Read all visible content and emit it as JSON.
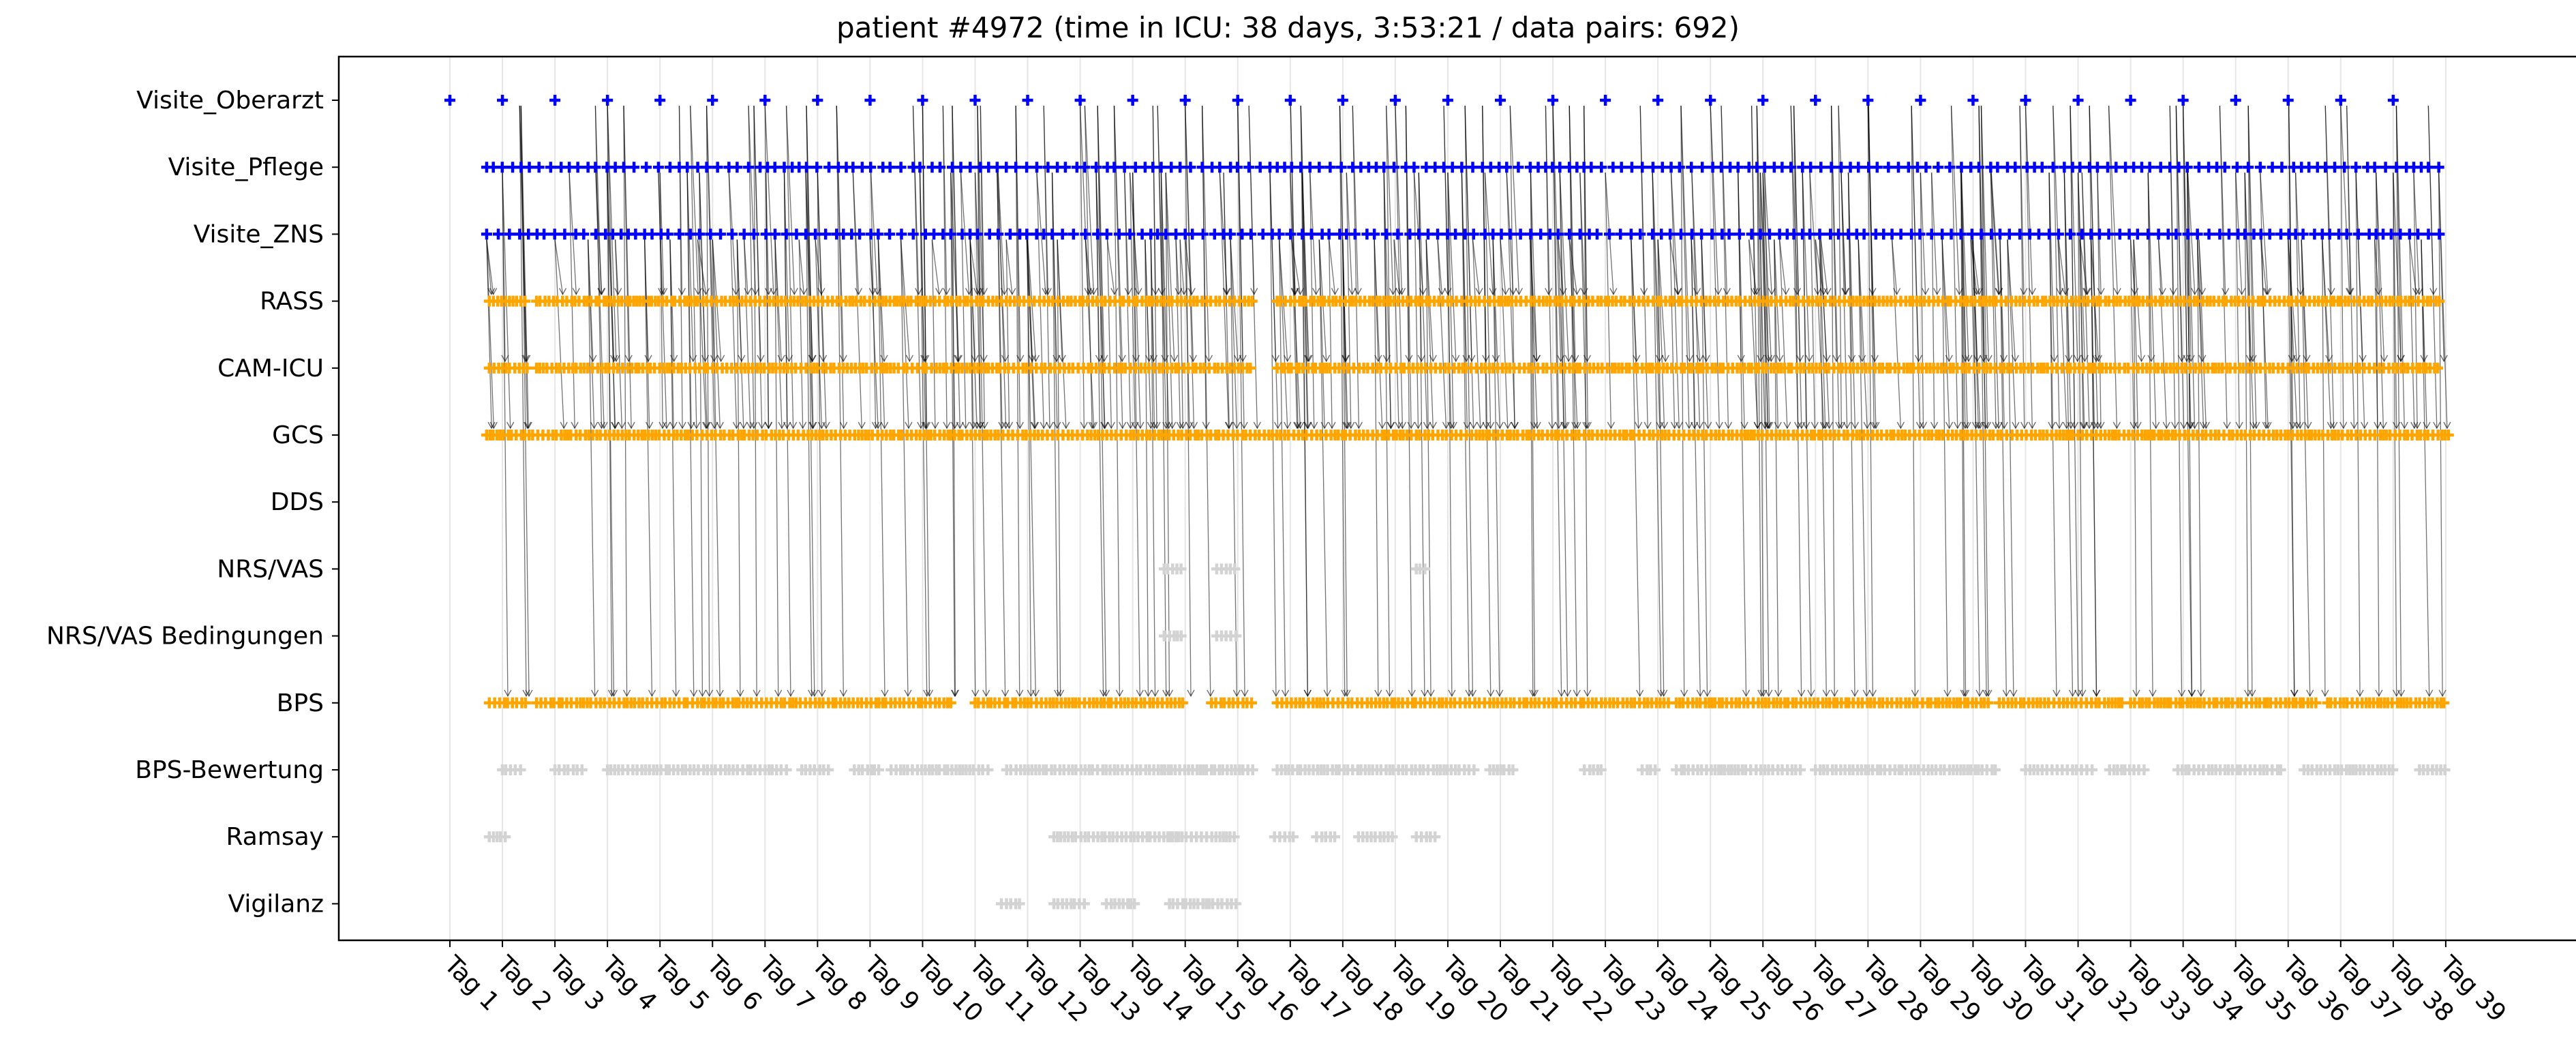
{
  "chart_data": {
    "type": "scatter",
    "title": "patient #4972 (time in ICU: 38 days, 3:53:21 / data pairs: 692)",
    "rows": [
      "Visite_Oberarzt",
      "Visite_Pflege",
      "Visite_ZNS",
      "RASS",
      "CAM-ICU",
      "GCS",
      "DDS",
      "NRS/VAS",
      "NRS/VAS Bedingungen",
      "BPS",
      "BPS-Bewertung",
      "Ramsay",
      "Vigilanz"
    ],
    "x_tick_labels": [
      "Tag 1",
      "Tag 2",
      "Tag 3",
      "Tag 4",
      "Tag 5",
      "Tag 6",
      "Tag 7",
      "Tag 8",
      "Tag 9",
      "Tag 10",
      "Tag 11",
      "Tag 12",
      "Tag 13",
      "Tag 14",
      "Tag 15",
      "Tag 16",
      "Tag 17",
      "Tag 18",
      "Tag 19",
      "Tag 20",
      "Tag 21",
      "Tag 22",
      "Tag 23",
      "Tag 24",
      "Tag 25",
      "Tag 26",
      "Tag 27",
      "Tag 28",
      "Tag 29",
      "Tag 30",
      "Tag 31",
      "Tag 32",
      "Tag 33",
      "Tag 34",
      "Tag 35",
      "Tag 36",
      "Tag 37",
      "Tag 38",
      "Tag 39"
    ],
    "x_range_days": [
      -2.1,
      38.8
    ],
    "marker": "plus",
    "grid": "vertical lines at each day",
    "legend": "none",
    "colors": {
      "visits": "#0000ff",
      "paired": "#ffa500",
      "unpaired": "#d3d3d3",
      "link": "#000000",
      "grid": "#e6e6e6"
    },
    "series": [
      {
        "row": "Visite_Oberarzt",
        "color": "#0000ff",
        "segments": [
          [
            0,
            0
          ],
          [
            1,
            1
          ],
          [
            2,
            2
          ],
          [
            3,
            3
          ],
          [
            4,
            4
          ],
          [
            5,
            5
          ],
          [
            6,
            6
          ],
          [
            7,
            7
          ],
          [
            8,
            8
          ],
          [
            9,
            9
          ],
          [
            10,
            10
          ],
          [
            11,
            11
          ],
          [
            12,
            12
          ],
          [
            13,
            13
          ],
          [
            14,
            14
          ],
          [
            15,
            15
          ],
          [
            16,
            16
          ],
          [
            17,
            17
          ],
          [
            18,
            18
          ],
          [
            19,
            19
          ],
          [
            20,
            20
          ],
          [
            21,
            21
          ],
          [
            22,
            22
          ],
          [
            23,
            23
          ],
          [
            24,
            24
          ],
          [
            25,
            25
          ],
          [
            26,
            26
          ],
          [
            27,
            27
          ],
          [
            28,
            28
          ],
          [
            29,
            29
          ],
          [
            30,
            30
          ],
          [
            31,
            31
          ],
          [
            32,
            32
          ],
          [
            33,
            33
          ],
          [
            34,
            34
          ],
          [
            35,
            35
          ],
          [
            36,
            36
          ],
          [
            37,
            37
          ]
        ]
      },
      {
        "row": "Visite_Pflege",
        "color": "#0000ff",
        "segments": [
          [
            0.7,
            38
          ]
        ]
      },
      {
        "row": "Visite_ZNS",
        "color": "#0000ff",
        "segments": [
          [
            0.7,
            37.9
          ]
        ]
      },
      {
        "row": "RASS",
        "color": "#ffa500",
        "segments": [
          [
            0.75,
            1.5
          ],
          [
            1.65,
            15.3
          ],
          [
            15.75,
            37.9
          ]
        ]
      },
      {
        "row": "CAM-ICU",
        "color": "#ffa500",
        "segments": [
          [
            0.75,
            1.5
          ],
          [
            1.65,
            15.3
          ],
          [
            15.75,
            37.9
          ]
        ]
      },
      {
        "row": "GCS",
        "color": "#ffa500",
        "segments": [
          [
            0.7,
            38.1
          ]
        ]
      },
      {
        "row": "DDS",
        "color": "#ffa500",
        "segments": []
      },
      {
        "row": "NRS/VAS",
        "color": "#d3d3d3",
        "segments": [
          [
            13.6,
            14
          ],
          [
            14.6,
            15
          ],
          [
            18.4,
            18.6
          ]
        ]
      },
      {
        "row": "NRS/VAS Bedingungen",
        "color": "#d3d3d3",
        "segments": [
          [
            13.6,
            14
          ],
          [
            14.6,
            15
          ]
        ]
      },
      {
        "row": "BPS",
        "color": "#ffa500",
        "segments": [
          [
            0.75,
            1.5
          ],
          [
            1.65,
            9.6
          ],
          [
            10,
            14
          ],
          [
            14.5,
            15.3
          ],
          [
            15.75,
            23.2
          ],
          [
            23.35,
            29.3
          ],
          [
            29.5,
            31.9
          ],
          [
            32,
            35.6
          ],
          [
            35.75,
            38
          ]
        ]
      },
      {
        "row": "BPS-Bewertung",
        "color": "#d3d3d3",
        "segments": [
          [
            1,
            1.4
          ],
          [
            2,
            2.6
          ],
          [
            3,
            6.5
          ],
          [
            6.7,
            7.3
          ],
          [
            7.7,
            8.2
          ],
          [
            8.4,
            10.3
          ],
          [
            10.6,
            15.3
          ],
          [
            15.75,
            19.5
          ],
          [
            19.8,
            20.3
          ],
          [
            21.6,
            22
          ],
          [
            22.7,
            23
          ],
          [
            23.35,
            25.8
          ],
          [
            26,
            29.5
          ],
          [
            30,
            31.3
          ],
          [
            31.6,
            32.3
          ],
          [
            32.9,
            34.9
          ],
          [
            35.3,
            37
          ],
          [
            37.5,
            38
          ]
        ]
      },
      {
        "row": "Ramsay",
        "color": "#d3d3d3",
        "segments": [
          [
            0.75,
            1.1
          ],
          [
            11.5,
            13.9
          ],
          [
            13.7,
            15
          ],
          [
            15.7,
            16.1
          ],
          [
            16.5,
            16.9
          ],
          [
            17.3,
            18
          ],
          [
            18.4,
            18.8
          ]
        ]
      },
      {
        "row": "Vigilanz",
        "color": "#d3d3d3",
        "segments": [
          [
            10.5,
            10.9
          ],
          [
            11.5,
            12.1
          ],
          [
            12.5,
            13.1
          ],
          [
            13.7,
            15
          ]
        ]
      }
    ]
  }
}
